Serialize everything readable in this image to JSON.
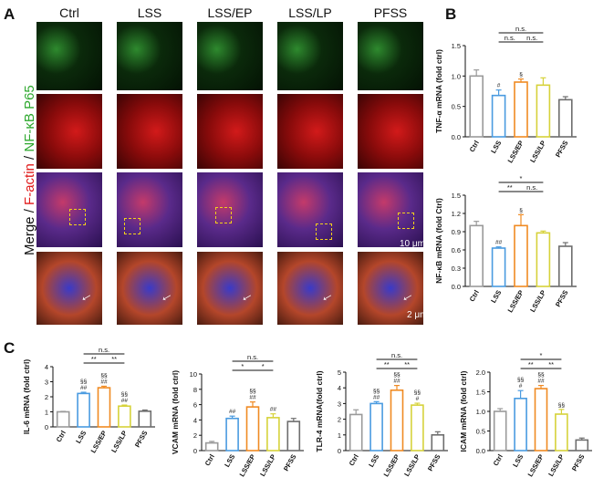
{
  "panel_labels": {
    "a": "A",
    "b": "B",
    "c": "C"
  },
  "microscopy": {
    "columns": [
      "Ctrl",
      "LSS",
      "LSS/EP",
      "LSS/LP",
      "PFSS"
    ],
    "side_label": {
      "merge": "Merge",
      "slash1": " / ",
      "factin": "F-actin",
      "slash2": " / ",
      "nfkb": "NF-κB P65"
    },
    "scale_bar_1": "10 μm",
    "scale_bar_2": "2 μm",
    "colors": {
      "green": "#2fa82f",
      "red": "#e01818",
      "text": "#111111"
    }
  },
  "bar_colors": [
    "#9a9a9a",
    "#4a9be0",
    "#f08a22",
    "#d6d23a",
    "#6e6e6e"
  ],
  "chart_data": [
    {
      "type": "bar",
      "id": "tnf",
      "categories": [
        "Ctrl",
        "LSS",
        "LSS/EP",
        "LSS/LP",
        "PFSS"
      ],
      "values": [
        1.0,
        0.68,
        0.9,
        0.85,
        0.61
      ],
      "errors": [
        0.1,
        0.09,
        0.05,
        0.12,
        0.05
      ],
      "ylabel": "TNF-α mRNA (fold ctrl)",
      "ylim": [
        0,
        1.5
      ],
      "yticks": [
        "0.0",
        "0.5",
        "1.0",
        "1.5"
      ],
      "marks": [
        "",
        "#",
        "§",
        "",
        ""
      ],
      "sig": [
        {
          "from": 1,
          "to": 3,
          "label": "n.s."
        },
        {
          "from": 1,
          "to": 2,
          "label": "n.s."
        },
        {
          "from": 2,
          "to": 3,
          "label": "n.s."
        }
      ]
    },
    {
      "type": "bar",
      "id": "nfkb",
      "categories": [
        "Ctrl",
        "LSS",
        "LSS/EP",
        "LSS/LP",
        "PFSS"
      ],
      "values": [
        1.0,
        0.63,
        1.0,
        0.88,
        0.66
      ],
      "errors": [
        0.07,
        0.02,
        0.18,
        0.03,
        0.06
      ],
      "ylabel": "NF-κB mRNA (fold Ctrl)",
      "ylim": [
        0,
        1.5
      ],
      "yticks": [
        "0.0",
        "0.3",
        "0.6",
        "0.9",
        "1.2",
        "1.5"
      ],
      "marks": [
        "",
        "##",
        "§",
        "",
        ""
      ],
      "sig": [
        {
          "from": 1,
          "to": 3,
          "label": "*"
        },
        {
          "from": 1,
          "to": 2,
          "label": "**"
        },
        {
          "from": 2,
          "to": 3,
          "label": "n.s."
        }
      ]
    },
    {
      "type": "bar",
      "id": "il6",
      "categories": [
        "Ctrl",
        "LSS",
        "LSS/EP",
        "LSS/LP",
        "PFSS"
      ],
      "values": [
        1.0,
        2.22,
        2.6,
        1.38,
        1.04
      ],
      "errors": [
        0.03,
        0.08,
        0.1,
        0.07,
        0.08
      ],
      "ylabel": "IL-6 mRNA (fold ctrl)",
      "ylim": [
        0,
        4
      ],
      "yticks": [
        "0",
        "1",
        "2",
        "3",
        "4"
      ],
      "marks": [
        "",
        "§§\n##",
        "§§\n##",
        "§§\n##",
        ""
      ],
      "sig": [
        {
          "from": 1,
          "to": 3,
          "label": "n.s."
        },
        {
          "from": 1,
          "to": 2,
          "label": "**"
        },
        {
          "from": 2,
          "to": 3,
          "label": "**"
        }
      ]
    },
    {
      "type": "bar",
      "id": "vcam",
      "categories": [
        "Ctrl",
        "LSS",
        "LSS/EP",
        "LSS/LP",
        "PFSS"
      ],
      "values": [
        1.0,
        4.2,
        5.7,
        4.3,
        3.8
      ],
      "errors": [
        0.2,
        0.3,
        0.65,
        0.5,
        0.4
      ],
      "ylabel": "VCAM mRNA (fold ctrl)",
      "ylim": [
        0,
        10
      ],
      "yticks": [
        "0",
        "2",
        "4",
        "6",
        "8",
        "10"
      ],
      "marks": [
        "",
        "##",
        "§§\n##",
        "##",
        ""
      ],
      "sig": [
        {
          "from": 1,
          "to": 3,
          "label": "n.s."
        },
        {
          "from": 1,
          "to": 2,
          "label": "*"
        },
        {
          "from": 2,
          "to": 3,
          "label": "*"
        }
      ]
    },
    {
      "type": "bar",
      "id": "tlr4",
      "categories": [
        "Ctrl",
        "LSS",
        "LSS/EP",
        "LSS/LP",
        "PFSS"
      ],
      "values": [
        2.3,
        3.0,
        3.85,
        2.9,
        1.0
      ],
      "errors": [
        0.3,
        0.12,
        0.3,
        0.12,
        0.2
      ],
      "ylabel": "TLR-4 mRNA(fold ctrl)",
      "ylim": [
        0,
        5
      ],
      "yticks": [
        "0",
        "1",
        "2",
        "3",
        "4",
        "5"
      ],
      "marks": [
        "",
        "§§\n##",
        "§§\n##",
        "§§\n#",
        ""
      ],
      "sig": [
        {
          "from": 1,
          "to": 3,
          "label": "n.s."
        },
        {
          "from": 1,
          "to": 2,
          "label": "**"
        },
        {
          "from": 2,
          "to": 3,
          "label": "**"
        }
      ]
    },
    {
      "type": "bar",
      "id": "icam",
      "categories": [
        "Ctrl",
        "LSS",
        "LSS/EP",
        "LSS/LP",
        "PFSS"
      ],
      "values": [
        1.0,
        1.33,
        1.58,
        0.93,
        0.27
      ],
      "errors": [
        0.07,
        0.2,
        0.08,
        0.12,
        0.05
      ],
      "ylabel": "ICAM mRNA (fold ctrl)",
      "ylim": [
        0,
        2
      ],
      "yticks": [
        "0.0",
        "0.5",
        "1.0",
        "1.5",
        "2.0"
      ],
      "marks": [
        "",
        "§§\n#",
        "§§\n##",
        "§§",
        ""
      ],
      "sig": [
        {
          "from": 1,
          "to": 3,
          "label": "*"
        },
        {
          "from": 1,
          "to": 2,
          "label": "**"
        },
        {
          "from": 2,
          "to": 3,
          "label": "**"
        }
      ]
    }
  ]
}
